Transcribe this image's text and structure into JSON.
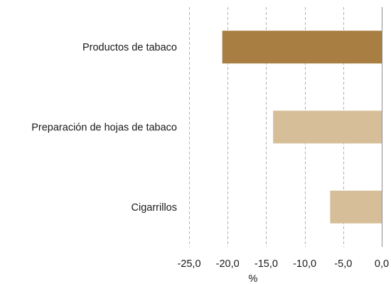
{
  "chart_data": {
    "type": "bar",
    "orientation": "horizontal",
    "categories": [
      "Productos de tabaco",
      "Preparación de hojas de tabaco",
      "Cigarrillos"
    ],
    "values": [
      -20.7,
      -14.1,
      -6.7
    ],
    "bar_colors": [
      "#a87e42",
      "#d6bf98",
      "#d6bf98"
    ],
    "xlabel": "%",
    "ylabel": "",
    "xlim": [
      -25,
      0
    ],
    "xticks": [
      -25,
      -20,
      -15,
      -10,
      -5,
      0
    ],
    "xtick_labels": [
      "-25,0",
      "-20,0",
      "-15,0",
      "-10,0",
      "-5,0",
      "0,0"
    ],
    "grid": "vertical dashed",
    "legend": "none"
  }
}
